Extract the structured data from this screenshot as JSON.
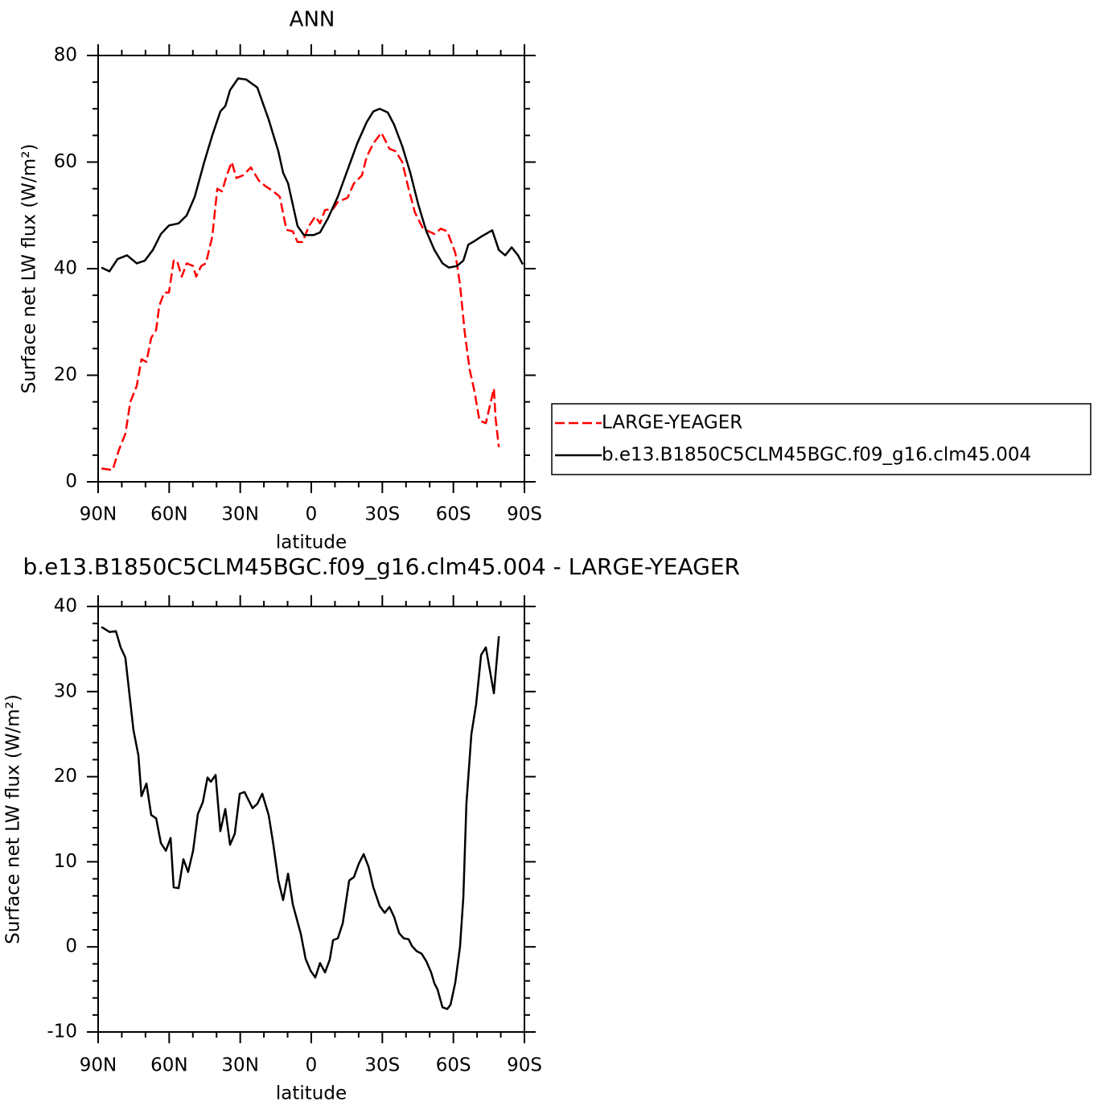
{
  "chart_data": [
    {
      "type": "line",
      "title": "ANN",
      "xlabel": "latitude",
      "ylabel": "Surface net LW flux (W/m²)",
      "xlim": [
        90,
        -90
      ],
      "xticks": [
        {
          "value": 90,
          "label": "90N"
        },
        {
          "value": 60,
          "label": "60N"
        },
        {
          "value": 30,
          "label": "30N"
        },
        0,
        {
          "value": -30,
          "label": "30S"
        },
        {
          "value": -60,
          "label": "60S"
        },
        {
          "value": -90,
          "label": "90S"
        }
      ],
      "ylim": [
        0,
        80
      ],
      "yticks": [
        0,
        20,
        40,
        60,
        80
      ],
      "series": [
        {
          "name": "LARGE-YEAGER",
          "color": "#ff0000",
          "style": "dashed",
          "x": [
            88.6,
            83.9,
            81.2,
            78.5,
            76.4,
            73.7,
            71.7,
            69.6,
            67.6,
            65.5,
            64.2,
            62.1,
            60.1,
            58.1,
            56.7,
            54.7,
            52.6,
            49.9,
            48.6,
            46.5,
            44.5,
            41.8,
            39.7,
            37.7,
            35.7,
            33.6,
            31.6,
            28.9,
            25.5,
            22.1,
            19.4,
            16,
            13.3,
            10.5,
            7.8,
            5.8,
            3.7,
            1,
            -1.7,
            -3.7,
            -5.8,
            -9.2,
            -11.2,
            -15.3,
            -18,
            -21.4,
            -23.4,
            -26.2,
            -29.6,
            -33,
            -35.7,
            -38.4,
            -41.1,
            -43.8,
            -47.2,
            -52,
            -54.7,
            -57.4,
            -60.8,
            -62.8,
            -64.8,
            -66.9,
            -68.9,
            -71,
            -73.7,
            -77.1,
            -77.8,
            -79.2
          ],
          "values": [
            2.5,
            2.2,
            6,
            9,
            15,
            18,
            23,
            22.5,
            27,
            28.5,
            33,
            35.5,
            35.5,
            41.5,
            41.5,
            38.5,
            41,
            40.5,
            38.5,
            40.5,
            41,
            46,
            55,
            54.5,
            57.5,
            60,
            57,
            57.5,
            59,
            56.5,
            55.5,
            54.5,
            53.5,
            47.3,
            47,
            45,
            45,
            48,
            49.8,
            48.5,
            51,
            51.2,
            52.5,
            53.3,
            56,
            57.5,
            61,
            63.5,
            65.5,
            62.5,
            62,
            60,
            55,
            50.5,
            47.5,
            46.5,
            47.5,
            47,
            43,
            37,
            28,
            21,
            17,
            11.5,
            11,
            17.5,
            12,
            6.5
          ]
        },
        {
          "name": "b.e13.B1850C5CLM45BGC.f09_g16.clm45.004",
          "color": "#000000",
          "style": "solid",
          "x": [
            88.6,
            85.2,
            81.8,
            77.8,
            73.7,
            70.3,
            66.9,
            63.5,
            60.1,
            56,
            52.6,
            49.2,
            45.2,
            41.8,
            38.4,
            36.3,
            34.3,
            30.9,
            27.5,
            22.8,
            18,
            13.9,
            11.9,
            9.8,
            7.8,
            5.8,
            3.1,
            -1,
            -3.7,
            -7.1,
            -11.2,
            -15.3,
            -19.4,
            -23.4,
            -26.2,
            -28.9,
            -32.3,
            -35,
            -38.4,
            -41.8,
            -45.2,
            -48.6,
            -52,
            -55.4,
            -58.1,
            -61.5,
            -64.2,
            -66.3,
            -69,
            -71.7,
            -76.4,
            -79.2,
            -81.9,
            -84.6,
            -87.3,
            -89.3
          ],
          "values": [
            40.2,
            39.5,
            41.8,
            42.5,
            41,
            41.5,
            43.5,
            46.5,
            48.1,
            48.5,
            50,
            53.5,
            60,
            65,
            69.5,
            70.5,
            73.5,
            75.7,
            75.5,
            74,
            68,
            62,
            58,
            56,
            52,
            48,
            46.3,
            46.3,
            46.8,
            49.5,
            53.5,
            58.5,
            63.5,
            67.5,
            69.5,
            70,
            69.3,
            67,
            63,
            58,
            52,
            47,
            43.5,
            41,
            40.2,
            40.5,
            41.5,
            44.5,
            45.2,
            46,
            47.2,
            43.5,
            42.5,
            44,
            42.5,
            40.8
          ]
        }
      ]
    },
    {
      "type": "line",
      "title": "b.e13.B1850C5CLM45BGC.f09_g16.clm45.004 - LARGE-YEAGER",
      "xlabel": "latitude",
      "ylabel": "Surface net LW flux (W/m²)",
      "xlim": [
        90,
        -90
      ],
      "xticks": [
        {
          "value": 90,
          "label": "90N"
        },
        {
          "value": 60,
          "label": "60N"
        },
        {
          "value": 30,
          "label": "30N"
        },
        0,
        {
          "value": -30,
          "label": "30S"
        },
        {
          "value": -60,
          "label": "60S"
        },
        {
          "value": -90,
          "label": "90S"
        }
      ],
      "ylim": [
        -10,
        40
      ],
      "yticks": [
        -10,
        0,
        10,
        20,
        30,
        40
      ],
      "color": "#000000",
      "x": [
        88.6,
        85.2,
        82.5,
        80.5,
        78.5,
        75.1,
        73,
        71.7,
        69.6,
        67.6,
        65.5,
        63.5,
        61.4,
        59.4,
        58.1,
        56,
        54,
        52,
        49.9,
        47.9,
        45.8,
        43.8,
        42.4,
        40.4,
        38.4,
        36.3,
        34.3,
        32.3,
        30.2,
        28.2,
        24.8,
        22.8,
        20.7,
        18,
        16,
        13.9,
        11.9,
        9.8,
        7.8,
        4.4,
        2.4,
        0.3,
        -1.7,
        -3.7,
        -5.8,
        -7.8,
        -9.2,
        -11.2,
        -13.3,
        -16,
        -18,
        -20.1,
        -22.1,
        -24.2,
        -26.2,
        -28.9,
        -31,
        -33,
        -35,
        -37.1,
        -39.1,
        -41.1,
        -42.5,
        -44.5,
        -46.6,
        -48.6,
        -50.6,
        -52,
        -53.3,
        -55.4,
        -57.4,
        -58.8,
        -60.8,
        -62.8,
        -64.2,
        -65.5,
        -67.6,
        -69.6,
        -71.7,
        -73.7,
        -77.1,
        -79.2
      ],
      "values": [
        37.6,
        37,
        37.1,
        35.2,
        34,
        25.5,
        22.5,
        17.7,
        19.2,
        15.5,
        15.1,
        12.2,
        11.3,
        12.8,
        7,
        6.9,
        10.3,
        8.8,
        11.3,
        15.6,
        17,
        19.9,
        19.4,
        20.2,
        13.6,
        16.2,
        12,
        13.3,
        18,
        18.2,
        16.3,
        16.8,
        18,
        15.5,
        12,
        7.8,
        5.5,
        8.6,
        5,
        1.5,
        -1.4,
        -2.8,
        -3.6,
        -1.9,
        -3,
        -1.5,
        0.8,
        1,
        2.8,
        7.8,
        8.2,
        9.8,
        10.9,
        9.4,
        7,
        4.8,
        4,
        4.7,
        3.5,
        1.6,
        1,
        0.9,
        0.1,
        -0.5,
        -0.8,
        -1.7,
        -3,
        -4.3,
        -5,
        -7.1,
        -7.3,
        -6.8,
        -4.2,
        0,
        5.8,
        16.8,
        25,
        28.5,
        34.3,
        35.2,
        29.8,
        36.5
      ]
    }
  ]
}
